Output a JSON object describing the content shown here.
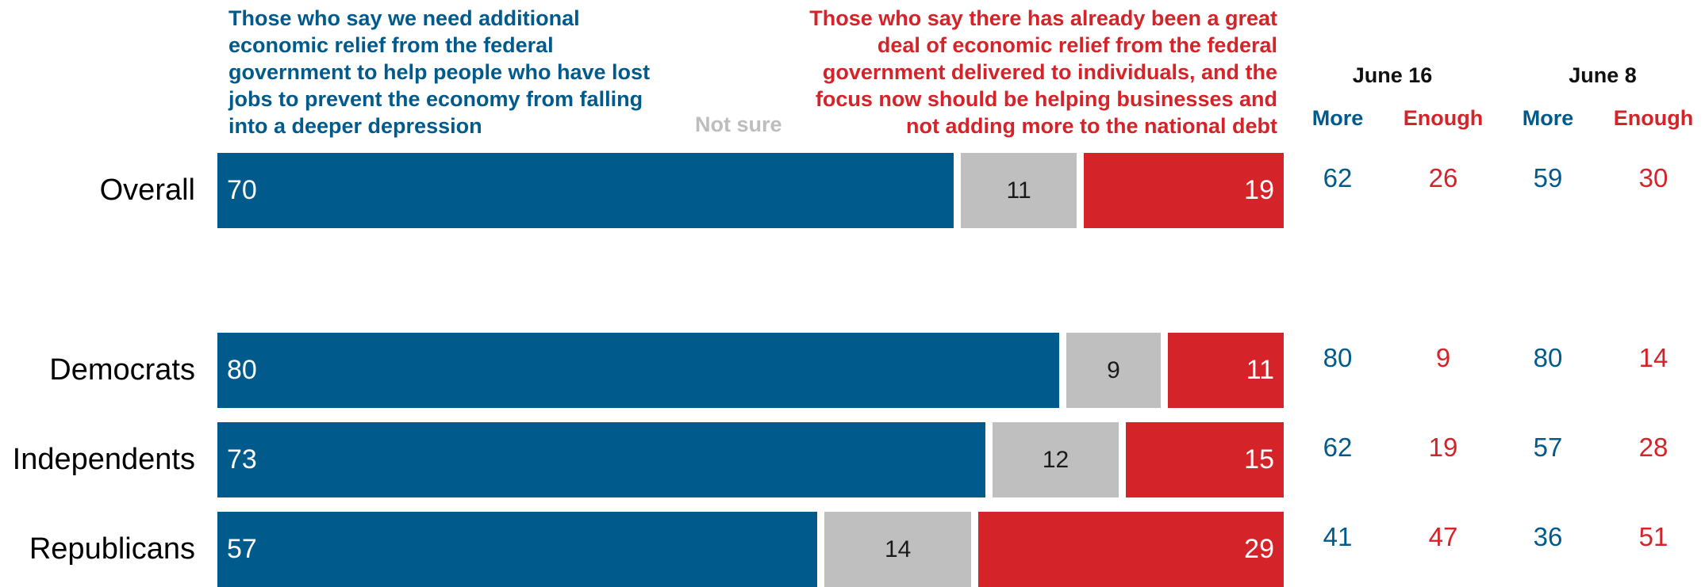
{
  "legend": {
    "more": "Those who say we need additional economic relief from the federal government to help people who have lost jobs to prevent the economy from falling into a deeper depression",
    "not_sure": "Not sure",
    "enough": "Those who say there has already been a great deal of economic relief from the federal government delivered to individuals, and the focus now should be helping businesses and not adding more to the national debt"
  },
  "comparison_headers": {
    "june16": "June 16",
    "june8": "June 8",
    "more": "More",
    "enough": "Enough"
  },
  "colors": {
    "more": "#005b8c",
    "not_sure": "#bfbfbf",
    "enough": "#d42329"
  },
  "chart_data": {
    "type": "bar",
    "orientation": "horizontal",
    "stacked": true,
    "categories": [
      "Overall",
      "Democrats",
      "Independents",
      "Republicans"
    ],
    "series": [
      {
        "name": "Those who say we need additional economic relief from the federal government to help people who have lost jobs to prevent the economy from falling into a deeper depression",
        "values": [
          70,
          80,
          73,
          57
        ]
      },
      {
        "name": "Not sure",
        "values": [
          11,
          9,
          12,
          14
        ]
      },
      {
        "name": "Those who say there has already been a great deal of economic relief from the federal government delivered to individuals, and the focus now should be helping businesses and not adding more to the national debt",
        "values": [
          19,
          11,
          15,
          29
        ]
      }
    ],
    "comparison": {
      "june16": {
        "more": [
          62,
          80,
          62,
          41
        ],
        "enough": [
          26,
          9,
          19,
          47
        ]
      },
      "june8": {
        "more": [
          59,
          80,
          57,
          36
        ],
        "enough": [
          30,
          14,
          28,
          51
        ]
      }
    },
    "xlim": [
      0,
      100
    ]
  }
}
